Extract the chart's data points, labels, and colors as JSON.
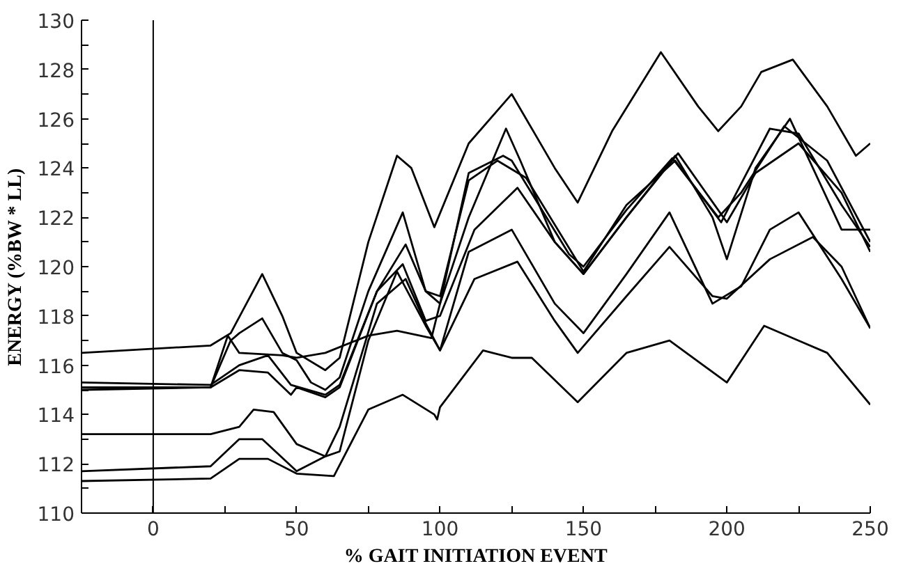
{
  "chart_data": {
    "type": "line",
    "xlabel": "% GAIT INITIATION EVENT",
    "ylabel": "ENERGY (%BW * LL)",
    "xlim": [
      -25,
      250
    ],
    "ylim": [
      110,
      130
    ],
    "xticks": [
      0,
      {
        "value": 25,
        "label": null
      },
      50,
      {
        "value": 75,
        "label": null
      },
      100,
      {
        "value": 125,
        "label": null
      },
      150,
      {
        "value": 175,
        "label": null
      },
      200,
      {
        "value": 225,
        "label": null
      },
      250
    ],
    "yticks": [
      110,
      {
        "value": 111,
        "label": null
      },
      112,
      {
        "value": 113,
        "label": null
      },
      114,
      {
        "value": 115,
        "label": null
      },
      116,
      {
        "value": 117,
        "label": null
      },
      118,
      {
        "value": 119,
        "label": null
      },
      120,
      {
        "value": 121,
        "label": null
      },
      122,
      {
        "value": 123,
        "label": null
      },
      124,
      {
        "value": 125,
        "label": null
      },
      126,
      {
        "value": 127,
        "label": null
      },
      128,
      {
        "value": 129,
        "label": null
      },
      130
    ],
    "grid": false,
    "marker": "none",
    "line_style": "solid",
    "ref_lines": [
      {
        "axis": "x",
        "value": 0,
        "color": "#000000"
      }
    ],
    "series": [
      {
        "color": "#000000",
        "x": [
          -25,
          20,
          27,
          38,
          45,
          50,
          60,
          65,
          75,
          85,
          90,
          98,
          110,
          125,
          140,
          148,
          160,
          177,
          190,
          197,
          205,
          212,
          223,
          235,
          245,
          250
        ],
        "values": [
          116.5,
          116.8,
          117.3,
          119.7,
          118,
          116.5,
          115.8,
          116.3,
          121,
          124.5,
          124,
          121.6,
          125,
          127,
          124,
          122.6,
          125.5,
          128.7,
          126.5,
          125.5,
          126.5,
          127.9,
          128.4,
          126.5,
          124.5,
          125
        ]
      },
      {
        "color": "#000000",
        "x": [
          -25,
          20,
          27,
          30,
          38,
          45,
          50,
          55,
          60,
          65,
          75,
          87,
          95,
          100,
          110,
          123,
          128,
          140,
          150,
          165,
          182,
          195,
          200,
          210,
          222,
          230,
          240,
          250
        ],
        "values": [
          115,
          115.1,
          117,
          117.3,
          117.9,
          116.5,
          116.2,
          115.3,
          115,
          115.5,
          119,
          122.2,
          119,
          118.5,
          122,
          125.6,
          124.3,
          121,
          119.7,
          122,
          124.5,
          122,
          120.3,
          124,
          126,
          124,
          121.5,
          121.5
        ]
      },
      {
        "color": "#000000",
        "x": [
          -25,
          20,
          30,
          40,
          48,
          60,
          65,
          78,
          88,
          95,
          100,
          110,
          120,
          130,
          150,
          165,
          182,
          198,
          215,
          225,
          240,
          250
        ],
        "values": [
          115.3,
          115.2,
          116,
          116.4,
          115.2,
          114.8,
          115.2,
          119,
          120.9,
          119,
          118.8,
          123.5,
          124.3,
          123.6,
          119.8,
          122.5,
          124.3,
          121.8,
          125.6,
          125.4,
          122.5,
          120.8
        ]
      },
      {
        "color": "#000000",
        "x": [
          -25,
          20,
          30,
          40,
          48,
          50,
          60,
          65,
          78,
          87,
          95,
          100,
          112,
          127,
          140,
          150,
          165,
          183,
          200,
          210,
          225,
          240,
          250
        ],
        "values": [
          115.1,
          115.1,
          115.8,
          115.7,
          114.8,
          115.1,
          114.7,
          115.1,
          119,
          120.1,
          117.8,
          118,
          121.5,
          123.2,
          121,
          119.7,
          122,
          124.6,
          121.8,
          123.8,
          125,
          123,
          120.6
        ]
      },
      {
        "color": "#000000",
        "x": [
          -25,
          20,
          30,
          35,
          42,
          50,
          60,
          65,
          78,
          88,
          95,
          100,
          110,
          125,
          140,
          150,
          165,
          180,
          195,
          205,
          215,
          225,
          240,
          250
        ],
        "values": [
          113.2,
          113.2,
          113.5,
          114.2,
          114.1,
          112.8,
          112.3,
          113.5,
          118.5,
          119.5,
          117.7,
          116.6,
          120.6,
          121.5,
          118.5,
          117.3,
          119.7,
          122.2,
          118.5,
          119.2,
          121.5,
          122.2,
          119.5,
          117.5
        ]
      },
      {
        "color": "#000000",
        "x": [
          -25,
          20,
          30,
          38,
          50,
          60,
          65,
          75,
          85,
          95,
          100,
          112,
          127,
          140,
          148,
          165,
          180,
          195,
          200,
          215,
          230,
          240,
          250
        ],
        "values": [
          111.7,
          111.9,
          113,
          113,
          111.7,
          112.3,
          112.5,
          117,
          119.8,
          117.6,
          116.6,
          119.5,
          120.2,
          117.8,
          116.5,
          118.8,
          120.8,
          118.8,
          118.7,
          120.3,
          121.2,
          120,
          117.5
        ]
      },
      {
        "color": "#000000",
        "x": [
          -25,
          20,
          26,
          30,
          45,
          50,
          60,
          75,
          85,
          97,
          100,
          110,
          122,
          125,
          145,
          150,
          165,
          181,
          197,
          205,
          220,
          235,
          250
        ],
        "values": [
          115.1,
          115.1,
          117.2,
          116.5,
          116.4,
          116.3,
          116.5,
          117.2,
          117.4,
          117.1,
          118.5,
          123.8,
          124.5,
          124.3,
          120.5,
          120,
          122.3,
          124.4,
          122,
          123,
          125.7,
          124.3,
          121
        ]
      },
      {
        "color": "#000000",
        "x": [
          -25,
          20,
          30,
          40,
          50,
          63,
          75,
          87,
          98,
          99,
          100,
          115,
          125,
          132,
          148,
          165,
          180,
          200,
          213,
          225,
          235,
          250
        ],
        "values": [
          111.3,
          111.4,
          112.2,
          112.2,
          111.6,
          111.5,
          114.2,
          114.8,
          114,
          113.8,
          114.3,
          116.6,
          116.3,
          116.3,
          114.5,
          116.5,
          117,
          115.3,
          117.6,
          117,
          116.5,
          114.4
        ]
      }
    ]
  }
}
